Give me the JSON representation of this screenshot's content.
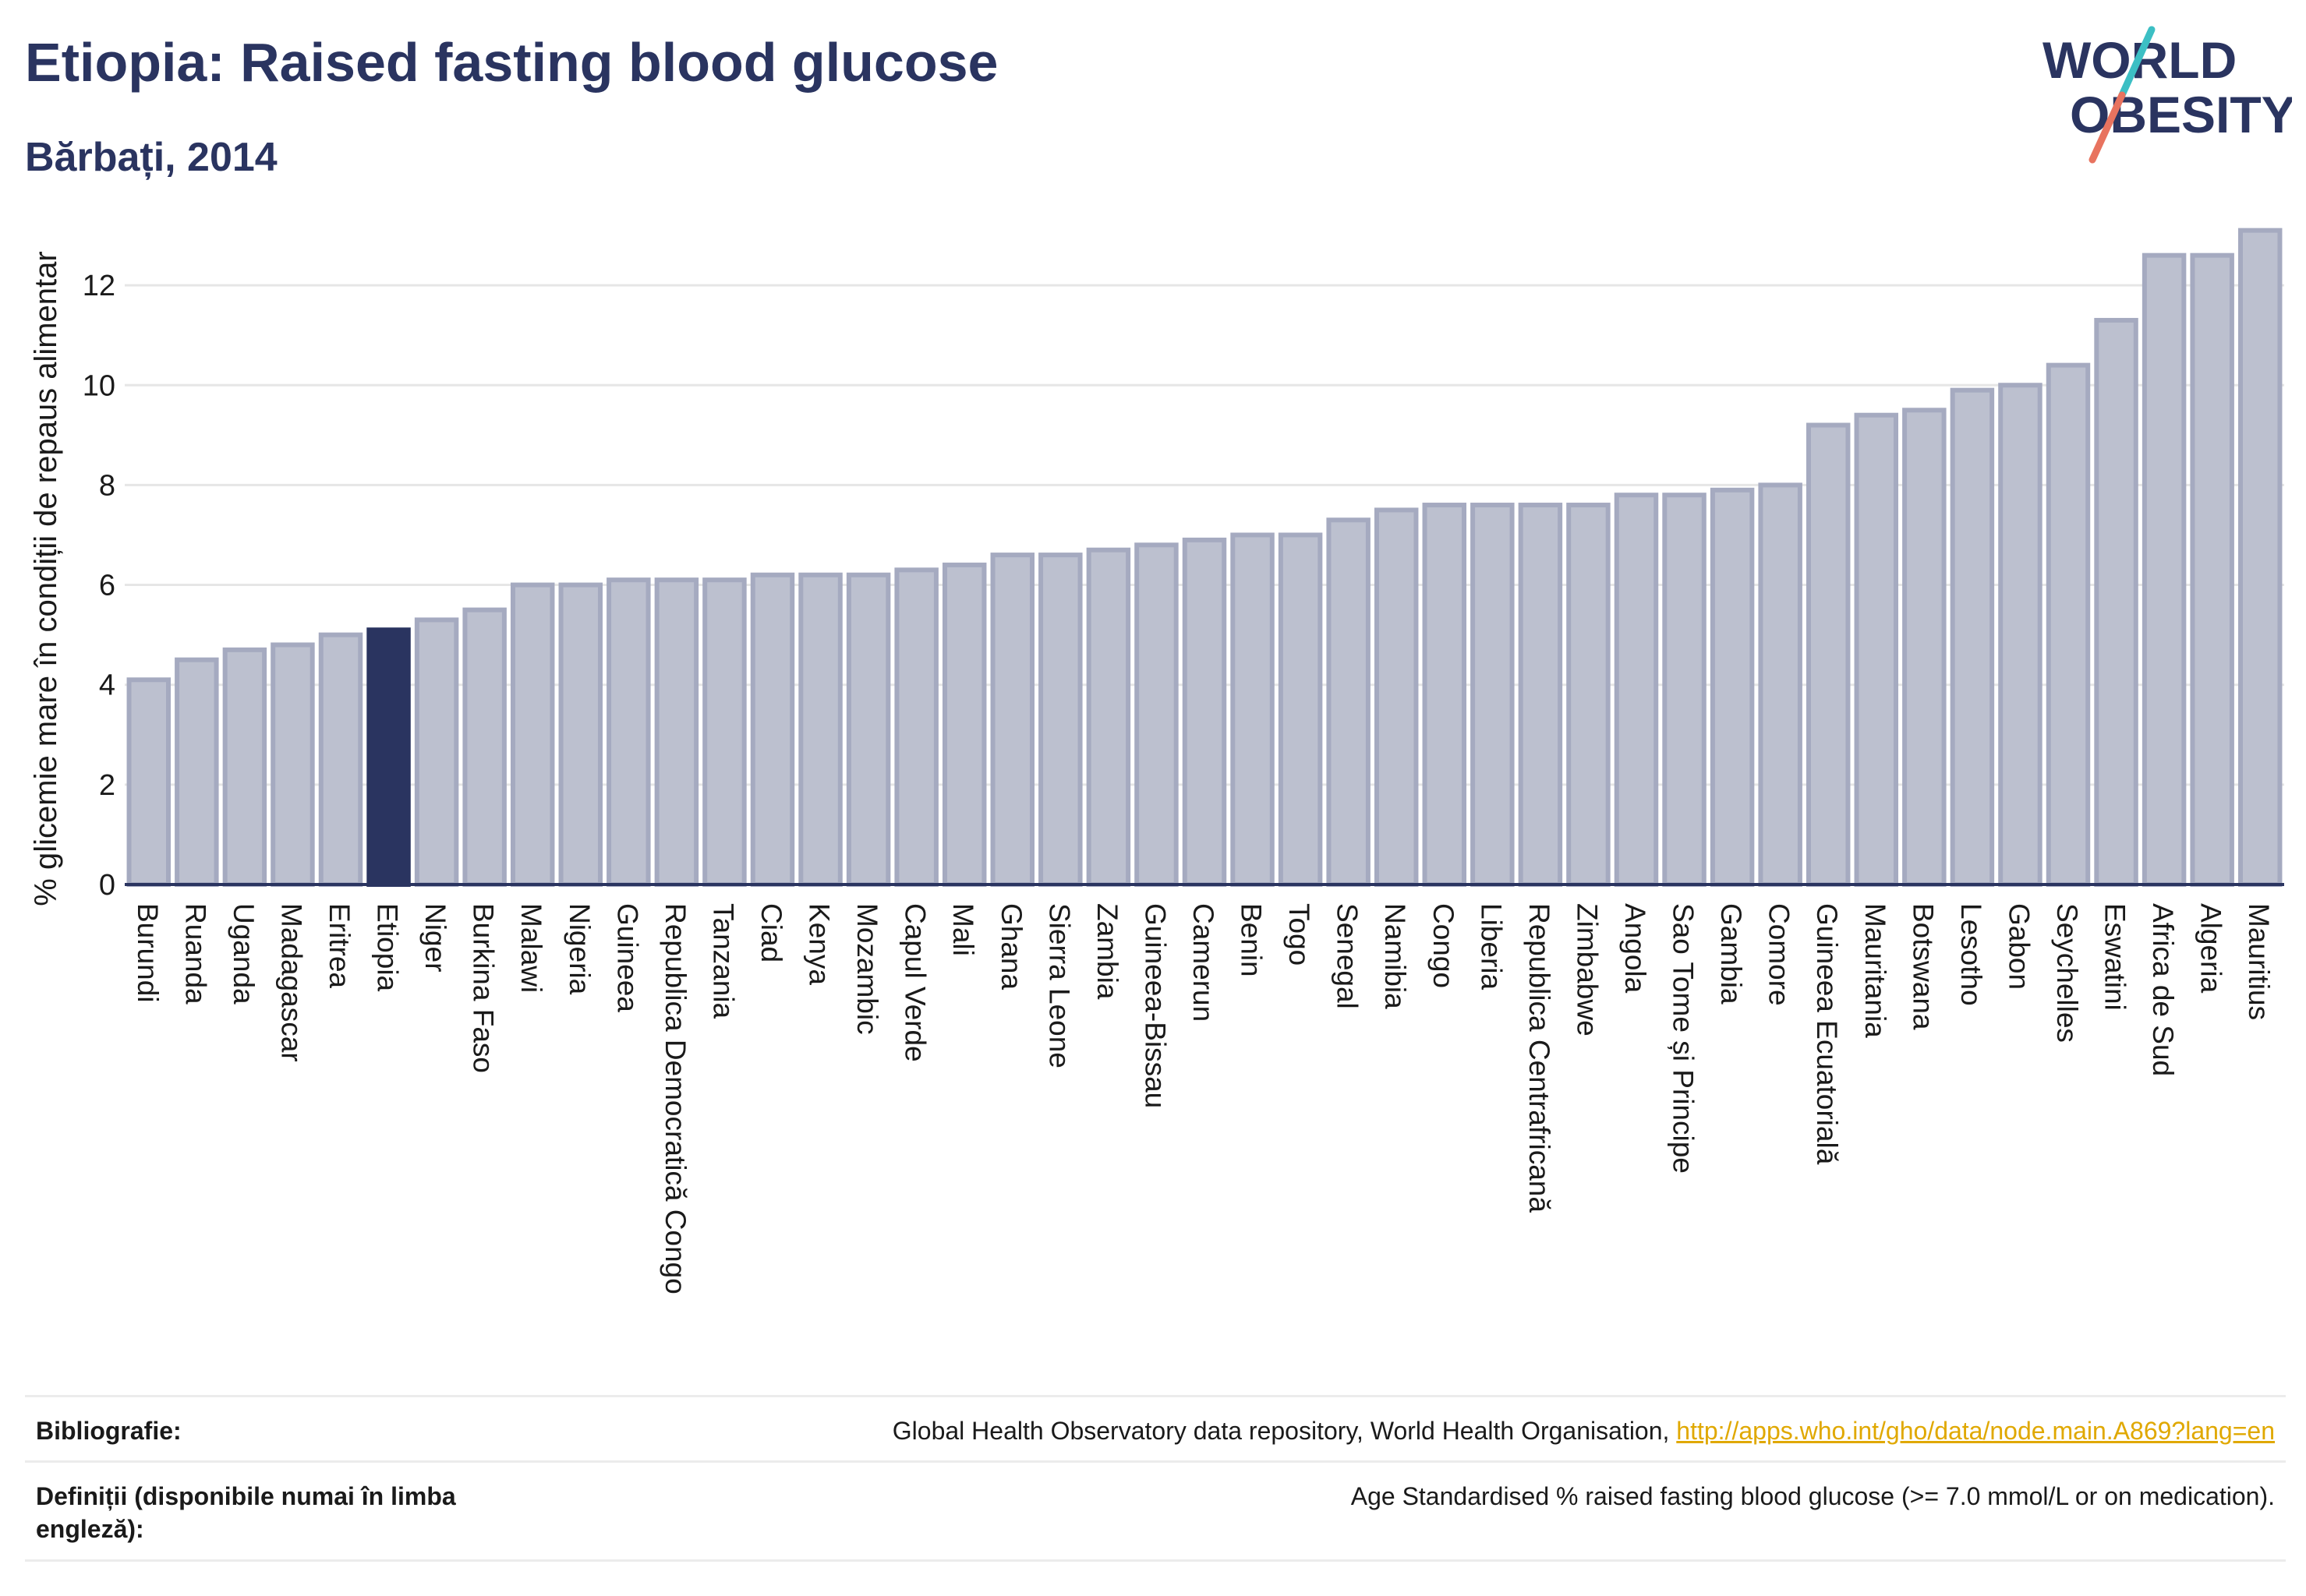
{
  "header": {
    "title": "Etiopia: Raised fasting blood glucose",
    "subtitle": "Bărbați, 2014",
    "logo_line1": "WORLD",
    "logo_line2": "OBESITY"
  },
  "colors": {
    "bar": "#bcc0cf",
    "bar_border": "#a5aac0",
    "highlight": "#2a3460",
    "axis": "#2a3460",
    "grid": "#e6e6e6",
    "logo_teal": "#3cbfc4",
    "logo_coral": "#e8735f"
  },
  "chart_data": {
    "type": "bar",
    "title": "Etiopia: Raised fasting blood glucose",
    "ylabel": "% glicemie mare în condiții de repaus alimentar",
    "ylim": [
      0,
      13.5
    ],
    "yticks": [
      0,
      2,
      4,
      6,
      8,
      10,
      12
    ],
    "grid": true,
    "highlight": "Etiopia",
    "categories": [
      "Burundi",
      "Ruanda",
      "Uganda",
      "Madagascar",
      "Eritrea",
      "Etiopia",
      "Niger",
      "Burkina Faso",
      "Malawi",
      "Nigeria",
      "Guineea",
      "Republica Democratică Congo",
      "Tanzania",
      "Ciad",
      "Kenya",
      "Mozambic",
      "Capul Verde",
      "Mali",
      "Ghana",
      "Sierra Leone",
      "Zambia",
      "Guineea-Bissau",
      "Camerun",
      "Benin",
      "Togo",
      "Senegal",
      "Namibia",
      "Congo",
      "Liberia",
      "Republica Centrafricană",
      "Zimbabwe",
      "Angola",
      "Sao Tome și Principe",
      "Gambia",
      "Comore",
      "Guineea Ecuatorială",
      "Mauritania",
      "Botswana",
      "Lesotho",
      "Gabon",
      "Seychelles",
      "Eswatini",
      "Africa de Sud",
      "Algeria",
      "Mauritius"
    ],
    "values": [
      4.1,
      4.5,
      4.7,
      4.8,
      5.0,
      5.1,
      5.3,
      5.5,
      6.0,
      6.0,
      6.1,
      6.1,
      6.1,
      6.2,
      6.2,
      6.2,
      6.3,
      6.4,
      6.6,
      6.6,
      6.7,
      6.8,
      6.9,
      7.0,
      7.0,
      7.3,
      7.5,
      7.6,
      7.6,
      7.6,
      7.6,
      7.8,
      7.8,
      7.9,
      8.0,
      9.2,
      9.4,
      9.5,
      9.9,
      10.0,
      10.4,
      11.3,
      12.6,
      12.6,
      13.1
    ]
  },
  "footer": {
    "bibliography_label": "Bibliografie:",
    "bibliography_text": "Global Health Observatory data repository, World Health Organisation, ",
    "bibliography_link": "http://apps.who.int/gho/data/node.main.A869?lang=en",
    "definitions_label": "Definiții (disponibile numai în limba engleză):",
    "definitions_text": "Age Standardised % raised fasting blood glucose (>= 7.0 mmol/L or on medication)."
  }
}
